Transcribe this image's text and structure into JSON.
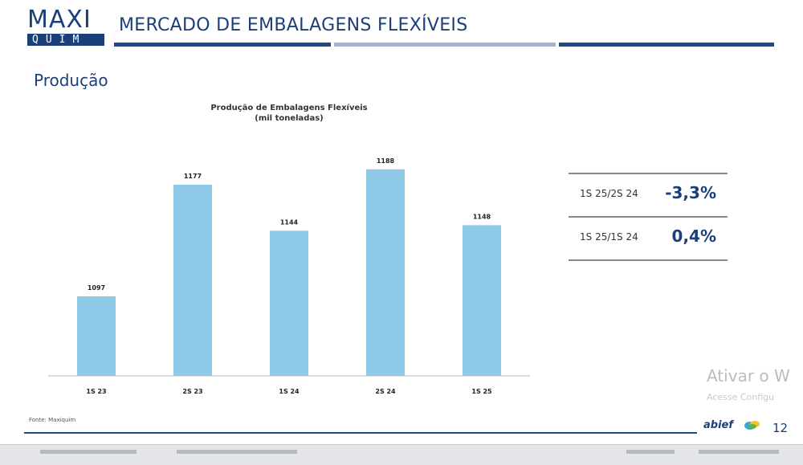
{
  "header": {
    "logo_top": "MAXI",
    "logo_bottom": "QUIM",
    "title": "MERCADO DE EMBALAGENS FLEXÍVEIS"
  },
  "section_title": "Produção",
  "chart_data": {
    "type": "bar",
    "title": "Produção de Embalagens Flexíveis",
    "subtitle": "(mil toneladas)",
    "categories": [
      "1S 23",
      "2S 23",
      "1S 24",
      "2S 24",
      "1S 25"
    ],
    "values": [
      1097,
      1177,
      1144,
      1188,
      1148
    ],
    "data_labels": [
      "1097",
      "1177",
      "1144",
      "1188",
      "1148"
    ],
    "ylim": [
      1040,
      1200
    ],
    "bar_color": "#8ecae8",
    "grid": false
  },
  "stats": [
    {
      "label": "1S 25/2S 24",
      "value": "-3,3%"
    },
    {
      "label": "1S 25/1S 24",
      "value": "0,4%"
    }
  ],
  "source": "Fonte: Maxiquim",
  "footer": {
    "brand": "abief",
    "page_number": "12"
  },
  "watermark": {
    "line1": "Ativar o W",
    "line2": "Acesse Configu"
  },
  "colors": {
    "brand_navy": "#1b3f78",
    "bar": "#8ecae8"
  }
}
